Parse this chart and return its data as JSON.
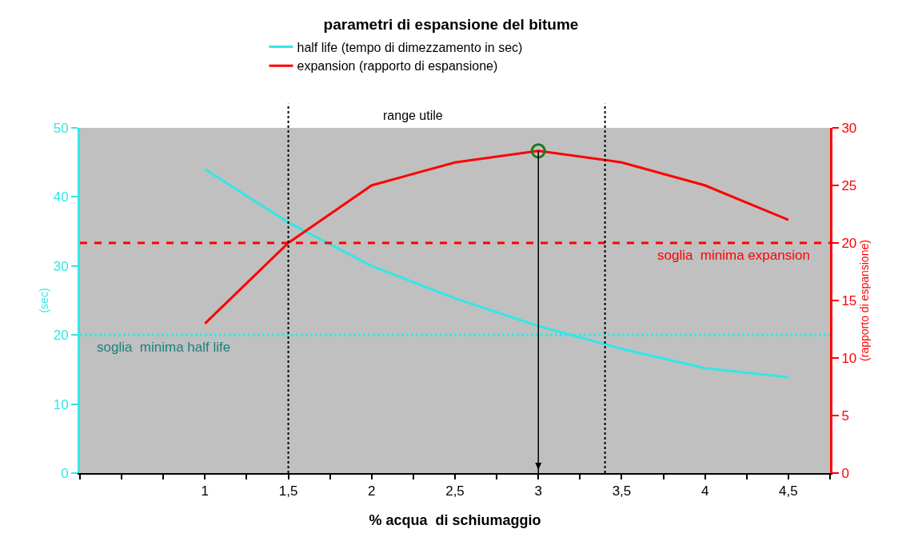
{
  "chart_data": {
    "type": "line",
    "title": "parametri di espansione del bitume",
    "xlabel": "% acqua  di schiumaggio",
    "ylabel": "(sec)",
    "y2label": "(rapporto di espansione)",
    "x": [
      1,
      1.5,
      2,
      2.5,
      3,
      3.5,
      4,
      4.5
    ],
    "series": [
      {
        "name": "half life (tempo di dimezzamento in sec)",
        "color": "#33e6e6",
        "values": [
          44,
          36.3,
          30,
          25.3,
          21.3,
          18,
          15.2,
          13.9
        ]
      },
      {
        "name": "expansion (rapporto di espansione)",
        "color": "#ff0000",
        "axis": "y2",
        "values": [
          13,
          20,
          25,
          27,
          28,
          27,
          25,
          22
        ]
      },
      {
        "type": "scatter",
        "x": [
          3
        ],
        "color": "#1e7a1e",
        "axis": "y2",
        "marker": "circle",
        "values": [
          28
        ]
      }
    ],
    "xlim": [
      0.25,
      4.75
    ],
    "xticks": [
      {
        "value": 0.25,
        "label": null
      },
      {
        "value": 0.5,
        "label": null
      },
      {
        "value": 0.75,
        "label": null
      },
      {
        "value": 1,
        "label": "1"
      },
      {
        "value": 1.25,
        "label": null
      },
      {
        "value": 1.5,
        "label": "1,5"
      },
      {
        "value": 1.75,
        "label": null
      },
      {
        "value": 2,
        "label": "2"
      },
      {
        "value": 2.25,
        "label": null
      },
      {
        "value": 2.5,
        "label": "2,5"
      },
      {
        "value": 2.75,
        "label": null
      },
      {
        "value": 3,
        "label": "3"
      },
      {
        "value": 3.25,
        "label": null
      },
      {
        "value": 3.5,
        "label": "3,5"
      },
      {
        "value": 3.75,
        "label": null
      },
      {
        "value": 4,
        "label": "4"
      },
      {
        "value": 4.25,
        "label": null
      },
      {
        "value": 4.5,
        "label": "4,5"
      },
      {
        "value": 4.75,
        "label": null
      }
    ],
    "ylim": [
      0,
      50
    ],
    "yticks": [
      0,
      10,
      20,
      30,
      40,
      50
    ],
    "y2lim": [
      0,
      30
    ],
    "y2ticks": [
      0,
      5,
      10,
      15,
      20,
      25,
      30
    ],
    "ref_lines": [
      {
        "axis": "y",
        "value": 20,
        "label": "soglia  minima half life",
        "color": "#33e6e6",
        "line_style": "dotted"
      },
      {
        "axis": "y2",
        "value": 20,
        "label": "soglia  minima expansion",
        "color": "#ff0000",
        "line_style": "dashed"
      },
      {
        "axis": "x",
        "value": 1.5,
        "label": null,
        "color": "#000000",
        "line_style": "dotted"
      },
      {
        "axis": "x",
        "value": 3.4,
        "label": null,
        "color": "#000000",
        "line_style": "dotted"
      },
      {
        "axis": "x",
        "value": 3,
        "label": null,
        "color": "#000000",
        "line_style": "solid"
      }
    ],
    "annotations": [
      "range utile"
    ],
    "grid": false,
    "legend": "top",
    "marker": "none",
    "line_style": "solid"
  }
}
